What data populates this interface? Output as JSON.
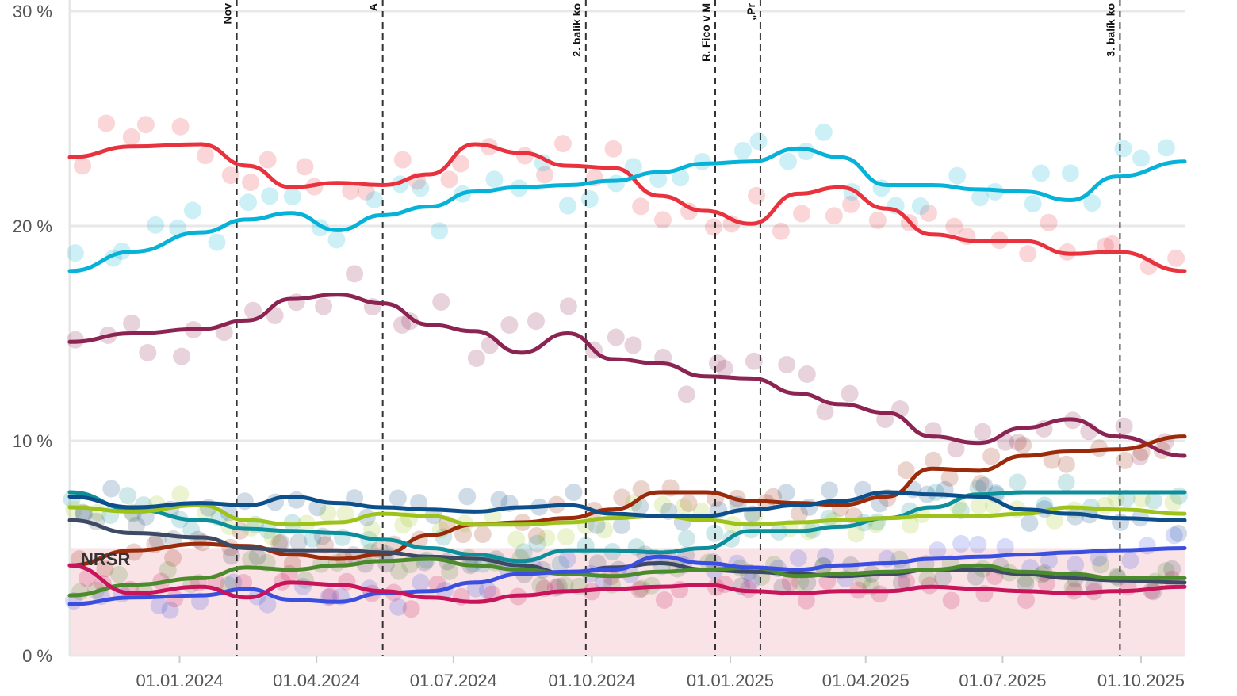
{
  "chart_data": {
    "type": "line",
    "title": "",
    "xlabel": "",
    "ylabel": "",
    "x_range": [
      "2023-10-20",
      "2025-10-30"
    ],
    "ylim": [
      0,
      30
    ],
    "y_ticks": [
      {
        "value": 0,
        "label": "0 %"
      },
      {
        "value": 10,
        "label": "10 %"
      },
      {
        "value": 20,
        "label": "20 %"
      },
      {
        "value": 30,
        "label": "30 %"
      }
    ],
    "x_ticks": [
      {
        "date": "2024-01-01",
        "label": "01.01.2024"
      },
      {
        "date": "2024-04-01",
        "label": "01.04.2024"
      },
      {
        "date": "2024-07-01",
        "label": "01.07.2024"
      },
      {
        "date": "2024-10-01",
        "label": "01.10.2024"
      },
      {
        "date": "2025-01-01",
        "label": "01.01.2025"
      },
      {
        "date": "2025-04-01",
        "label": "01.04.2025"
      },
      {
        "date": "2025-07-01",
        "label": "01.07.2025"
      },
      {
        "date": "2025-10-01",
        "label": "01.10.2025"
      }
    ],
    "threshold": {
      "value": 5,
      "label": "NRSR"
    },
    "events": [
      {
        "date": "2024-02-08",
        "label": "Nov"
      },
      {
        "date": "2024-05-15",
        "label": "A"
      },
      {
        "date": "2024-09-27",
        "label": "2. balík ko"
      },
      {
        "date": "2024-12-22",
        "label": "R. Fico v M"
      },
      {
        "date": "2025-01-21",
        "label": "„Pr"
      },
      {
        "date": "2025-09-17",
        "label": "3. balík ko"
      }
    ],
    "x": [
      "2023-10-20",
      "2023-12-01",
      "2024-01-15",
      "2024-02-15",
      "2024-03-15",
      "2024-04-15",
      "2024-05-15",
      "2024-06-15",
      "2024-07-15",
      "2024-08-15",
      "2024-09-15",
      "2024-10-15",
      "2024-11-15",
      "2024-12-15",
      "2025-01-15",
      "2025-02-15",
      "2025-03-15",
      "2025-04-15",
      "2025-05-15",
      "2025-06-15",
      "2025-07-15",
      "2025-08-15",
      "2025-09-15",
      "2025-10-30"
    ],
    "series": [
      {
        "name": "red",
        "color": "#e8323e",
        "values": [
          23.2,
          23.7,
          23.8,
          22.8,
          21.8,
          22.0,
          21.9,
          22.4,
          23.8,
          23.4,
          22.8,
          22.7,
          21.4,
          20.7,
          20.1,
          21.5,
          21.8,
          20.8,
          19.6,
          19.3,
          19.3,
          18.7,
          18.8,
          17.9
        ]
      },
      {
        "name": "light blue",
        "color": "#06b2d7",
        "values": [
          17.9,
          18.8,
          19.7,
          20.3,
          20.6,
          19.8,
          20.5,
          20.9,
          21.6,
          21.8,
          21.9,
          22.1,
          22.5,
          22.9,
          23.0,
          23.6,
          23.2,
          21.9,
          21.9,
          21.7,
          21.6,
          21.2,
          22.3,
          23.0
        ]
      },
      {
        "name": "maroon",
        "color": "#8b2452",
        "values": [
          14.6,
          15.0,
          15.2,
          15.6,
          16.6,
          16.8,
          16.4,
          15.4,
          15.1,
          14.1,
          15.0,
          13.8,
          13.6,
          13.0,
          12.9,
          12.2,
          11.7,
          11.3,
          10.2,
          9.9,
          10.6,
          11.0,
          10.2,
          9.3
        ]
      },
      {
        "name": "dark red",
        "color": "#9a2a09",
        "values": [
          4.2,
          4.9,
          5.2,
          5.1,
          4.7,
          4.5,
          4.7,
          5.6,
          6.1,
          6.2,
          6.4,
          6.8,
          7.6,
          7.6,
          7.2,
          7.1,
          7.0,
          7.4,
          8.7,
          8.6,
          9.3,
          9.5,
          9.6,
          10.2
        ]
      },
      {
        "name": "teal",
        "color": "#0d8f9b",
        "values": [
          7.6,
          6.8,
          6.3,
          5.9,
          5.8,
          5.7,
          5.4,
          5.0,
          4.7,
          4.4,
          4.9,
          4.9,
          4.8,
          5.0,
          5.8,
          5.8,
          6.0,
          6.4,
          6.9,
          7.5,
          7.6,
          7.6,
          7.6,
          7.6
        ]
      },
      {
        "name": "lime",
        "color": "#9dc31a",
        "values": [
          6.9,
          6.7,
          7.0,
          6.3,
          6.1,
          6.2,
          6.6,
          6.5,
          6.1,
          6.1,
          6.2,
          6.4,
          6.5,
          6.3,
          6.1,
          6.2,
          6.3,
          6.4,
          6.5,
          6.5,
          6.6,
          6.9,
          6.8,
          6.6
        ]
      },
      {
        "name": "navy",
        "color": "#0d4f8b",
        "values": [
          7.4,
          6.9,
          7.1,
          7.0,
          7.4,
          7.1,
          6.9,
          6.8,
          6.7,
          6.9,
          7.0,
          6.6,
          6.5,
          6.5,
          6.8,
          7.0,
          7.2,
          7.6,
          7.5,
          7.4,
          6.8,
          6.6,
          6.4,
          6.3
        ]
      },
      {
        "name": "dark slate",
        "color": "#3d4a63",
        "values": [
          6.3,
          5.7,
          5.5,
          5.0,
          4.9,
          4.9,
          4.8,
          4.6,
          4.5,
          4.2,
          3.8,
          4.1,
          4.3,
          4.0,
          3.9,
          3.8,
          3.7,
          3.8,
          4.0,
          4.0,
          3.8,
          3.6,
          3.5,
          3.4
        ]
      },
      {
        "name": "green",
        "color": "#4c8b2b",
        "values": [
          2.8,
          3.3,
          3.6,
          4.1,
          4.0,
          4.2,
          4.4,
          4.5,
          4.2,
          4.0,
          3.8,
          3.7,
          3.9,
          4.0,
          4.1,
          3.7,
          3.8,
          3.9,
          4.0,
          4.2,
          3.9,
          3.8,
          3.6,
          3.6
        ]
      },
      {
        "name": "blue",
        "color": "#3a4ee0",
        "values": [
          2.4,
          2.7,
          2.8,
          3.1,
          2.6,
          2.5,
          2.9,
          3.0,
          3.4,
          3.8,
          3.9,
          4.0,
          4.6,
          4.3,
          4.1,
          4.0,
          4.2,
          4.3,
          4.5,
          4.6,
          4.7,
          4.8,
          4.9,
          5.0
        ]
      },
      {
        "name": "magenta",
        "color": "#c8145a",
        "values": [
          4.2,
          2.9,
          3.2,
          2.7,
          3.4,
          3.3,
          3.0,
          2.7,
          2.5,
          2.8,
          3.0,
          3.1,
          3.2,
          3.3,
          3.0,
          2.9,
          3.0,
          3.0,
          3.2,
          3.1,
          3.0,
          2.9,
          3.0,
          3.2
        ]
      }
    ]
  }
}
